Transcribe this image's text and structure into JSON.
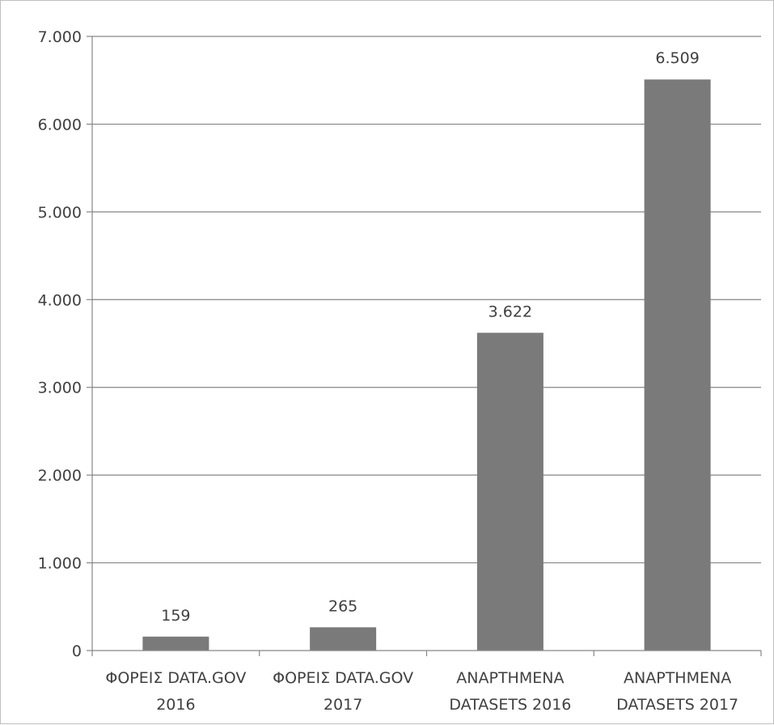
{
  "chart_data": {
    "type": "bar",
    "title": "",
    "xlabel": "",
    "ylabel": "",
    "categories": [
      [
        "ΦΟΡΕΙΣ DATA.GOV",
        "2016"
      ],
      [
        "ΦΟΡΕΙΣ DATA.GOV",
        "2017"
      ],
      [
        "ΑΝΑΡΤΗΜΕΝΑ",
        "DATASETS 2016"
      ],
      [
        "ΑΝΑΡΤΗΜΕΝΑ",
        "DATASETS 2017"
      ]
    ],
    "values": [
      159,
      265,
      3622,
      6509
    ],
    "data_labels": [
      "159",
      "265",
      "3.622",
      "6.509"
    ],
    "ylim": [
      0,
      7000
    ],
    "yticks": [
      0,
      1000,
      2000,
      3000,
      4000,
      5000,
      6000,
      7000
    ],
    "ytick_labels": [
      "0",
      "1.000",
      "2.000",
      "3.000",
      "4.000",
      "5.000",
      "6.000",
      "7.000"
    ],
    "grid": true,
    "legend": "none",
    "colors": {
      "bar": "#7a7a7a",
      "grid": "#868686",
      "axis": "#868686",
      "text": "#404040"
    }
  }
}
